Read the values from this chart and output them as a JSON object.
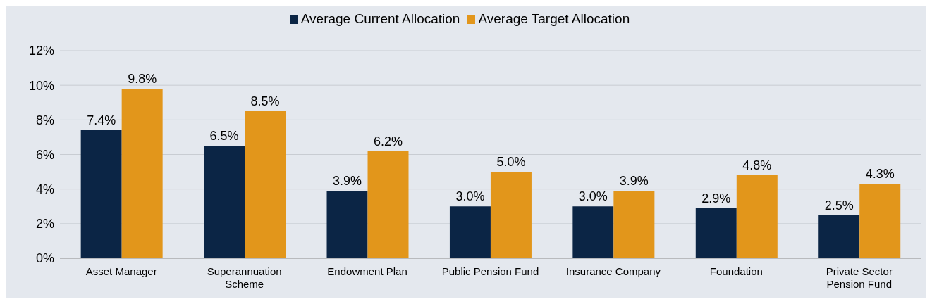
{
  "chart_data": {
    "type": "bar",
    "categories": [
      "Asset Manager",
      "Superannuation Scheme",
      "Endowment Plan",
      "Public Pension Fund",
      "Insurance Company",
      "Foundation",
      "Private Sector Pension Fund"
    ],
    "series": [
      {
        "name": "Average Current Allocation",
        "color": "#0b2545",
        "values": [
          7.4,
          6.5,
          3.9,
          3.0,
          3.0,
          2.9,
          2.5
        ],
        "value_labels": [
          "7.4%",
          "6.5%",
          "3.9%",
          "3.0%",
          "3.0%",
          "2.9%",
          "2.5%"
        ]
      },
      {
        "name": "Average Target Allocation",
        "color": "#e2961b",
        "values": [
          9.8,
          8.5,
          6.2,
          5.0,
          3.9,
          4.8,
          4.3
        ],
        "value_labels": [
          "9.8%",
          "8.5%",
          "6.2%",
          "5.0%",
          "3.9%",
          "4.8%",
          "4.3%"
        ]
      }
    ],
    "ylim": [
      0,
      12
    ],
    "yticks": [
      {
        "value": 0,
        "label": "0%"
      },
      {
        "value": 2,
        "label": "2%"
      },
      {
        "value": 4,
        "label": "4%"
      },
      {
        "value": 6,
        "label": "6%"
      },
      {
        "value": 8,
        "label": "8%"
      },
      {
        "value": 10,
        "label": "10%"
      },
      {
        "value": 12,
        "label": "12%"
      }
    ],
    "grid": "y",
    "legend": "top"
  }
}
